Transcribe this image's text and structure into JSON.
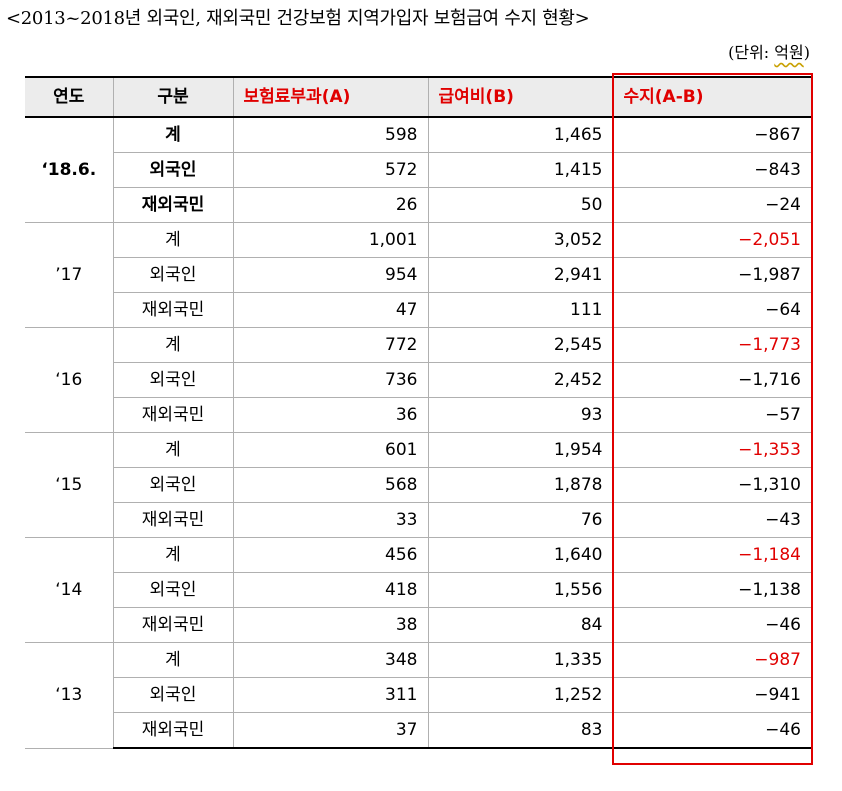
{
  "title": "<2013~2018년 외국인, 재외국민 건강보험 지역가입자 보험급여 수지 현황>",
  "unit": {
    "prefix": "(단위: ",
    "word": "억원",
    "suffix": ")"
  },
  "colors": {
    "accent_red": "#e00000",
    "header_bg": "#ececec",
    "wavy_underline": "#c8a000"
  },
  "table": {
    "headers": [
      "연도",
      "구분",
      "보험료부과(A)",
      "급여비(B)",
      "수지(A-B)"
    ],
    "groups": [
      {
        "year": "‘18.6.",
        "rows": [
          {
            "category": "계",
            "a": "598",
            "b": "1,465",
            "ab": "−867"
          },
          {
            "category": "외국인",
            "a": "572",
            "b": "1,415",
            "ab": "−843"
          },
          {
            "category": "재외국민",
            "a": "26",
            "b": "50",
            "ab": "−24"
          }
        ]
      },
      {
        "year": "’17",
        "rows": [
          {
            "category": "계",
            "a": "1,001",
            "b": "3,052",
            "ab": "−2,051"
          },
          {
            "category": "외국인",
            "a": "954",
            "b": "2,941",
            "ab": "−1,987"
          },
          {
            "category": "재외국민",
            "a": "47",
            "b": "111",
            "ab": "−64"
          }
        ]
      },
      {
        "year": "‘16",
        "rows": [
          {
            "category": "계",
            "a": "772",
            "b": "2,545",
            "ab": "−1,773"
          },
          {
            "category": "외국인",
            "a": "736",
            "b": "2,452",
            "ab": "−1,716"
          },
          {
            "category": "재외국민",
            "a": "36",
            "b": "93",
            "ab": "−57"
          }
        ]
      },
      {
        "year": "‘15",
        "rows": [
          {
            "category": "계",
            "a": "601",
            "b": "1,954",
            "ab": "−1,353"
          },
          {
            "category": "외국인",
            "a": "568",
            "b": "1,878",
            "ab": "−1,310"
          },
          {
            "category": "재외국민",
            "a": "33",
            "b": "76",
            "ab": "−43"
          }
        ]
      },
      {
        "year": "‘14",
        "rows": [
          {
            "category": "계",
            "a": "456",
            "b": "1,640",
            "ab": "−1,184"
          },
          {
            "category": "외국인",
            "a": "418",
            "b": "1,556",
            "ab": "−1,138"
          },
          {
            "category": "재외국민",
            "a": "38",
            "b": "84",
            "ab": "−46"
          }
        ]
      },
      {
        "year": "‘13",
        "rows": [
          {
            "category": "계",
            "a": "348",
            "b": "1,335",
            "ab": "−987"
          },
          {
            "category": "외국인",
            "a": "311",
            "b": "1,252",
            "ab": "−941"
          },
          {
            "category": "재외국민",
            "a": "37",
            "b": "83",
            "ab": "−46"
          }
        ]
      }
    ]
  }
}
